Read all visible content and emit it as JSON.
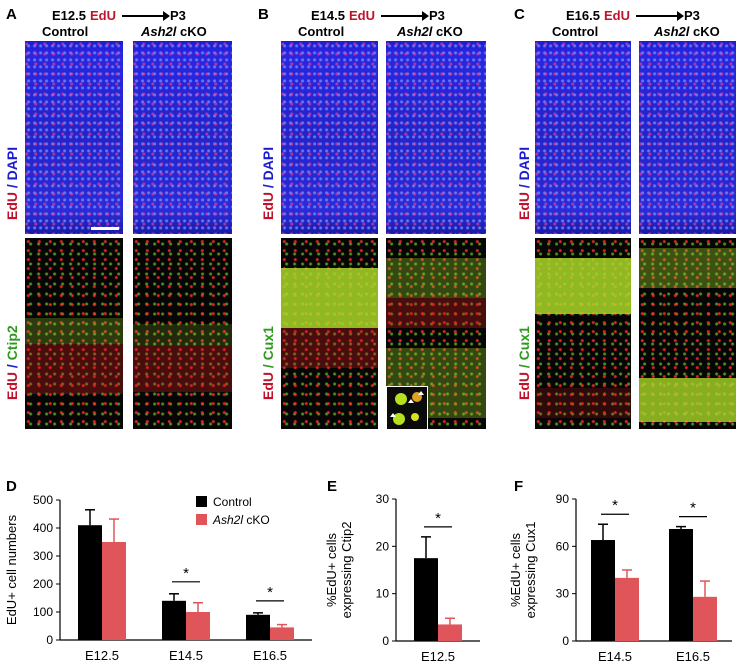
{
  "panels": {
    "A": {
      "letter": "A",
      "stage": "E12.5",
      "tracer": "EdU",
      "endpoint": "P3",
      "control_label": "Control",
      "cko_gene": "Ash2l",
      "cko_suffix": " cKO",
      "top_stain_red": "EdU",
      "top_stain_sep": " / ",
      "top_stain_blue": "DAPI",
      "bottom_stain_red": "EdU",
      "bottom_stain_sep": " / ",
      "bottom_stain_green": "Ctip2"
    },
    "B": {
      "letter": "B",
      "stage": "E14.5",
      "tracer": "EdU",
      "endpoint": "P3",
      "control_label": "Control",
      "cko_gene": "Ash2l",
      "cko_suffix": " cKO",
      "top_stain_red": "EdU",
      "top_stain_sep": " / ",
      "top_stain_blue": "DAPI",
      "bottom_stain_red": "EdU",
      "bottom_stain_sep": " / ",
      "bottom_stain_green": "Cux1"
    },
    "C": {
      "letter": "C",
      "stage": "E16.5",
      "tracer": "EdU",
      "endpoint": "P3",
      "control_label": "Control",
      "cko_gene": "Ash2l",
      "cko_suffix": " cKO",
      "top_stain_red": "EdU",
      "top_stain_sep": " / ",
      "top_stain_blue": "DAPI",
      "bottom_stain_red": "EdU",
      "bottom_stain_sep": " / ",
      "bottom_stain_green": "Cux1"
    }
  },
  "colors": {
    "control": "#000000",
    "cko": "#e0555a",
    "edu": "#c0122a",
    "dapi": "#1a1ad0",
    "marker": "#2e9a1e"
  },
  "chart_data": [
    {
      "letter": "D",
      "type": "bar",
      "ylabel": "EdU+ cell numbers",
      "categories": [
        "E12.5",
        "E14.5",
        "E16.5"
      ],
      "ylim": [
        0,
        500
      ],
      "yticks": [
        0,
        100,
        200,
        300,
        400,
        500
      ],
      "series": [
        {
          "name": "Control",
          "values": [
            410,
            140,
            90
          ],
          "errors": [
            55,
            25,
            7
          ]
        },
        {
          "name_gene": "Ash2l",
          "name_suffix": " cKO",
          "values": [
            350,
            100,
            45
          ],
          "errors": [
            82,
            33,
            10
          ]
        }
      ],
      "legend": "top-right",
      "significance": [
        {
          "category": "E14.5",
          "label": "*"
        },
        {
          "category": "E16.5",
          "label": "*"
        }
      ]
    },
    {
      "letter": "E",
      "type": "bar",
      "ylabel_lines": [
        "%EdU+ cells",
        "expressing Ctip2"
      ],
      "categories": [
        "E12.5"
      ],
      "ylim": [
        0,
        30
      ],
      "yticks": [
        0,
        10,
        20,
        30
      ],
      "series": [
        {
          "values": [
            17.5
          ],
          "errors": [
            4.5
          ]
        },
        {
          "values": [
            3.5
          ],
          "errors": [
            1.3
          ]
        }
      ],
      "significance": [
        {
          "category": "E12.5",
          "label": "*"
        }
      ]
    },
    {
      "letter": "F",
      "type": "bar",
      "ylabel_lines": [
        "%EdU+ cells",
        "expressing Cux1"
      ],
      "categories": [
        "E14.5",
        "E16.5"
      ],
      "ylim": [
        0,
        90
      ],
      "yticks": [
        0,
        30,
        60,
        90
      ],
      "series": [
        {
          "values": [
            64,
            71
          ],
          "errors": [
            10,
            1.5
          ]
        },
        {
          "values": [
            40,
            28
          ],
          "errors": [
            5,
            10
          ]
        }
      ],
      "significance": [
        {
          "category": "E14.5",
          "label": "*"
        },
        {
          "category": "E16.5",
          "label": "*"
        }
      ]
    }
  ]
}
